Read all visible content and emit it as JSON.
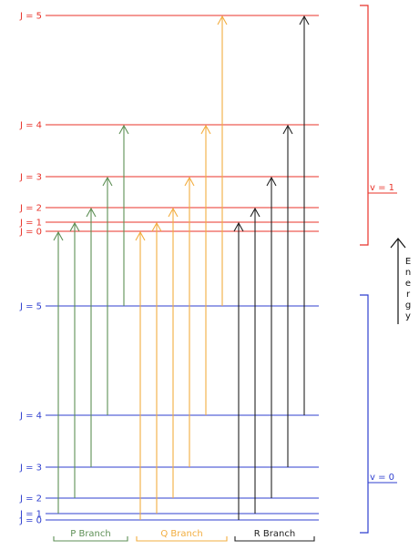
{
  "colors": {
    "upper": "#e8332a",
    "lower": "#2f3fcf",
    "p_branch": "#5d8f55",
    "q_branch": "#f2ad3f",
    "r_branch": "#222222"
  },
  "upper_state": {
    "vib_label": "v = 1",
    "levels": [
      {
        "j": 0,
        "label": "J = 0"
      },
      {
        "j": 1,
        "label": "J = 1"
      },
      {
        "j": 2,
        "label": "J = 2"
      },
      {
        "j": 3,
        "label": "J = 3"
      },
      {
        "j": 4,
        "label": "J = 4"
      },
      {
        "j": 5,
        "label": "J = 5"
      }
    ]
  },
  "lower_state": {
    "vib_label": "v = 0",
    "levels": [
      {
        "j": 0,
        "label": "J = 0"
      },
      {
        "j": 1,
        "label": "J = 1"
      },
      {
        "j": 2,
        "label": "J = 2"
      },
      {
        "j": 3,
        "label": "J = 3"
      },
      {
        "j": 4,
        "label": "J = 4"
      },
      {
        "j": 5,
        "label": "J = 5"
      }
    ]
  },
  "energy_label": "Energy",
  "branches": [
    {
      "key": "p",
      "label": "P Branch",
      "color_key": "p_branch",
      "transitions": [
        {
          "from_j": 1,
          "to_j": 0
        },
        {
          "from_j": 2,
          "to_j": 1
        },
        {
          "from_j": 3,
          "to_j": 2
        },
        {
          "from_j": 4,
          "to_j": 3
        },
        {
          "from_j": 5,
          "to_j": 4
        }
      ]
    },
    {
      "key": "q",
      "label": "Q Branch",
      "color_key": "q_branch",
      "transitions": [
        {
          "from_j": 0,
          "to_j": 0
        },
        {
          "from_j": 1,
          "to_j": 1
        },
        {
          "from_j": 2,
          "to_j": 2
        },
        {
          "from_j": 3,
          "to_j": 3
        },
        {
          "from_j": 4,
          "to_j": 4
        },
        {
          "from_j": 5,
          "to_j": 5
        }
      ]
    },
    {
      "key": "r",
      "label": "R Branch",
      "color_key": "r_branch",
      "transitions": [
        {
          "from_j": 0,
          "to_j": 1
        },
        {
          "from_j": 1,
          "to_j": 2
        },
        {
          "from_j": 2,
          "to_j": 3
        },
        {
          "from_j": 3,
          "to_j": 4
        },
        {
          "from_j": 4,
          "to_j": 5
        }
      ]
    }
  ]
}
